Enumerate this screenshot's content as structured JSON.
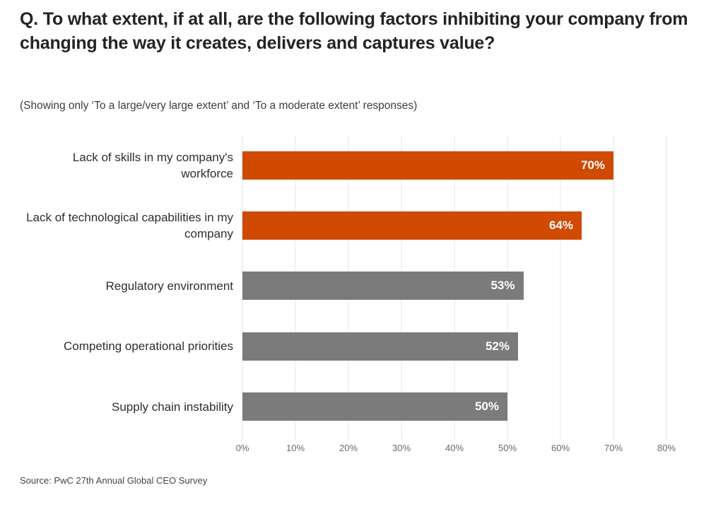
{
  "header": {
    "title": "Q. To what extent, if at all, are the following factors inhibiting your company from changing the way it creates, delivers and captures value?",
    "subtitle": "(Showing only ‘To a large/very large extent’ and ‘To a moderate extent’ responses)"
  },
  "chart_data": {
    "type": "bar",
    "orientation": "horizontal",
    "title": "Q. To what extent, if at all, are the following factors inhibiting your company from changing the way it creates, delivers and captures value?",
    "subtitle": "(Showing only ‘To a large/very large extent’ and ‘To a moderate extent’ responses)",
    "categories": [
      "Lack of skills in my company's workforce",
      "Lack of technological capabilities in my company",
      "Regulatory environment",
      "Competing operational priorities",
      "Supply chain instability"
    ],
    "values": [
      70,
      64,
      53,
      52,
      50
    ],
    "value_labels": [
      "70%",
      "64%",
      "53%",
      "52%",
      "50%"
    ],
    "bar_colors": [
      "#d04a02",
      "#d04a02",
      "#7b7b7b",
      "#7b7b7b",
      "#7b7b7b"
    ],
    "x_ticks": [
      "0%",
      "10%",
      "20%",
      "30%",
      "40%",
      "50%",
      "60%",
      "70%",
      "80%"
    ],
    "xlim": [
      0,
      80
    ],
    "xlabel": "",
    "ylabel": "",
    "grid": true,
    "legend": false
  },
  "footer": {
    "source": "Source: PwC 27th Annual Global CEO Survey"
  },
  "colors": {
    "accent_orange": "#d04a02",
    "neutral_gray": "#7b7b7b",
    "grid_line": "#e5e5e5",
    "axis_text": "#696969",
    "title_text": "#232323",
    "value_label_text": "#ffffff"
  }
}
